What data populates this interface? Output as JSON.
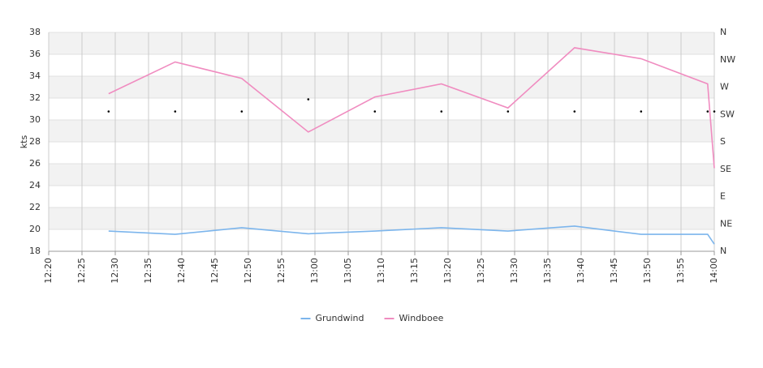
{
  "chart_data": {
    "type": "line",
    "ylabel": "kts",
    "x": [
      "12:29",
      "12:39",
      "12:49",
      "12:59",
      "13:09",
      "13:19",
      "13:29",
      "13:39",
      "13:49",
      "13:59",
      "14:00"
    ],
    "xlim": [
      "12:20",
      "14:00"
    ],
    "xticks": [
      "12:20",
      "12:25",
      "12:30",
      "12:35",
      "12:40",
      "12:45",
      "12:50",
      "12:55",
      "13:00",
      "13:05",
      "13:10",
      "13:15",
      "13:20",
      "13:25",
      "13:30",
      "13:35",
      "13:40",
      "13:45",
      "13:50",
      "13:55",
      "14:00"
    ],
    "ylim": [
      18,
      38
    ],
    "yticks": [
      18,
      20,
      22,
      24,
      26,
      28,
      30,
      32,
      34,
      36,
      38
    ],
    "y2lim": [
      0,
      360
    ],
    "y2ticks": [
      {
        "value": 0,
        "label": "N"
      },
      {
        "value": 45,
        "label": "NE"
      },
      {
        "value": 90,
        "label": "E"
      },
      {
        "value": 135,
        "label": "SE"
      },
      {
        "value": 180,
        "label": "S"
      },
      {
        "value": 225,
        "label": "SW"
      },
      {
        "value": 270,
        "label": "W"
      },
      {
        "value": 315,
        "label": "NW"
      },
      {
        "value": 360,
        "label": "N"
      }
    ],
    "grid": true,
    "banded": true,
    "legend": "bottom",
    "series": [
      {
        "name": "Grundwind",
        "color": "#7cb5ec",
        "values": [
          19.85,
          19.55,
          20.15,
          19.6,
          19.85,
          20.15,
          19.85,
          20.3,
          19.55,
          19.55,
          18.65
        ]
      },
      {
        "name": "Windboee",
        "color": "#f08cc0",
        "values": [
          32.4,
          35.3,
          33.8,
          28.9,
          32.1,
          33.3,
          31.1,
          36.6,
          35.6,
          33.3,
          25.6
        ]
      },
      {
        "axis": "y2",
        "marker": "dot",
        "color": "#000000",
        "values": [
          230,
          230,
          230,
          250,
          230,
          230,
          230,
          230,
          230,
          230,
          230
        ]
      }
    ]
  }
}
